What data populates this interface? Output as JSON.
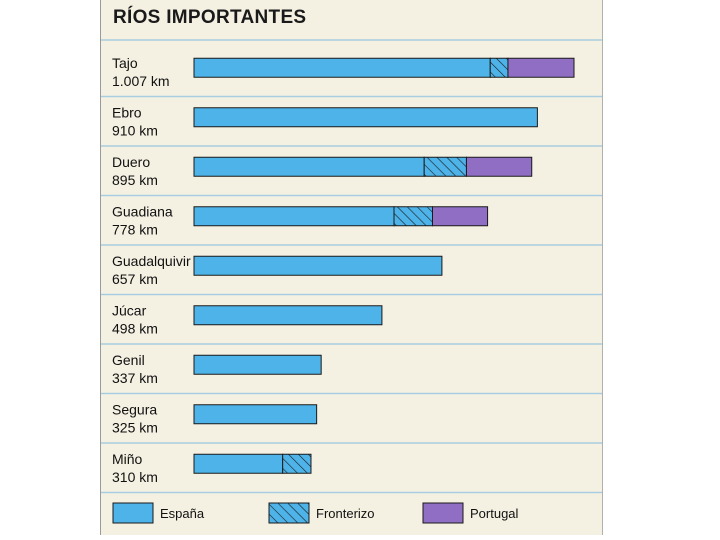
{
  "title": "RÍOS IMPORTANTES",
  "colors": {
    "españa": "#4db3e8",
    "fronterizo": "#4db3e8",
    "portugal": "#8f6ec4",
    "grid": "#a9cde0"
  },
  "chart_data": {
    "type": "bar",
    "orientation": "horizontal",
    "stacked": true,
    "title": "RÍOS IMPORTANTES",
    "categories": [
      "Tajo",
      "Ebro",
      "Duero",
      "Guadiana",
      "Guadalquivir",
      "Júcar",
      "Genil",
      "Segura",
      "Miño"
    ],
    "lengths": [
      "1.007 km",
      "910 km",
      "895 km",
      "778 km",
      "657 km",
      "498 km",
      "337 km",
      "325 km",
      "310 km"
    ],
    "series": [
      {
        "name": "España",
        "pattern": "solid",
        "values": [
          785,
          910,
          610,
          530,
          657,
          498,
          337,
          325,
          235
        ]
      },
      {
        "name": "Fronterizo",
        "pattern": "hatched",
        "values": [
          47,
          0,
          112,
          102,
          0,
          0,
          0,
          0,
          75
        ]
      },
      {
        "name": "Portugal",
        "pattern": "solid",
        "values": [
          175,
          0,
          173,
          146,
          0,
          0,
          0,
          0,
          0
        ]
      }
    ],
    "xlim": [
      0,
      1007
    ],
    "legend": {
      "position": "bottom",
      "entries": [
        "España",
        "Fronterizo",
        "Portugal"
      ]
    }
  }
}
